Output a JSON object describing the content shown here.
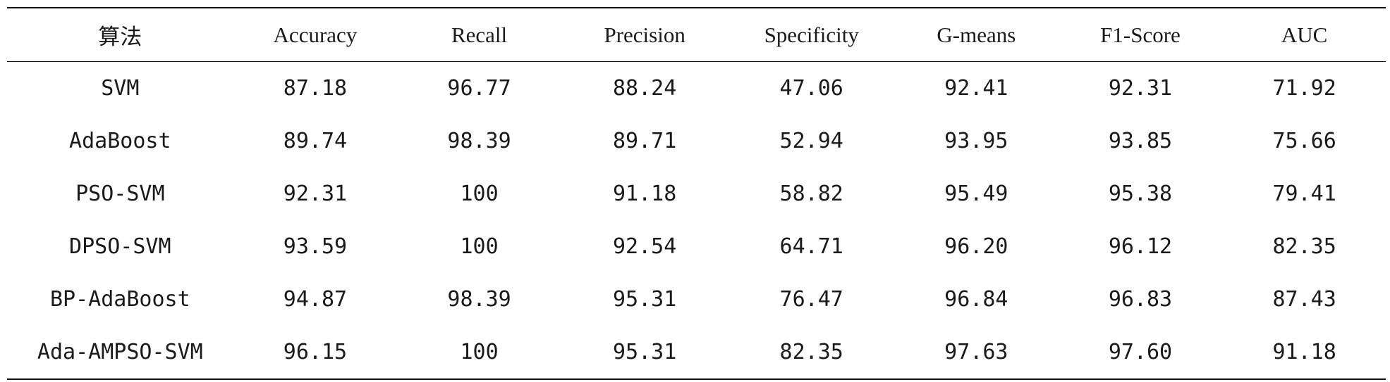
{
  "table": {
    "headers": [
      "算法",
      "Accuracy",
      "Recall",
      "Precision",
      "Specificity",
      "G-means",
      "F1-Score",
      "AUC"
    ],
    "rows": [
      [
        "SVM",
        "87.18",
        "96.77",
        "88.24",
        "47.06",
        "92.41",
        "92.31",
        "71.92"
      ],
      [
        "AdaBoost",
        "89.74",
        "98.39",
        "89.71",
        "52.94",
        "93.95",
        "93.85",
        "75.66"
      ],
      [
        "PSO-SVM",
        "92.31",
        "100",
        "91.18",
        "58.82",
        "95.49",
        "95.38",
        "79.41"
      ],
      [
        "DPSO-SVM",
        "93.59",
        "100",
        "92.54",
        "64.71",
        "96.20",
        "96.12",
        "82.35"
      ],
      [
        "BP-AdaBoost",
        "94.87",
        "98.39",
        "95.31",
        "76.47",
        "96.84",
        "96.83",
        "87.43"
      ],
      [
        "Ada-AMPSO-SVM",
        "96.15",
        "100",
        "95.31",
        "82.35",
        "97.63",
        "97.60",
        "91.18"
      ]
    ]
  }
}
